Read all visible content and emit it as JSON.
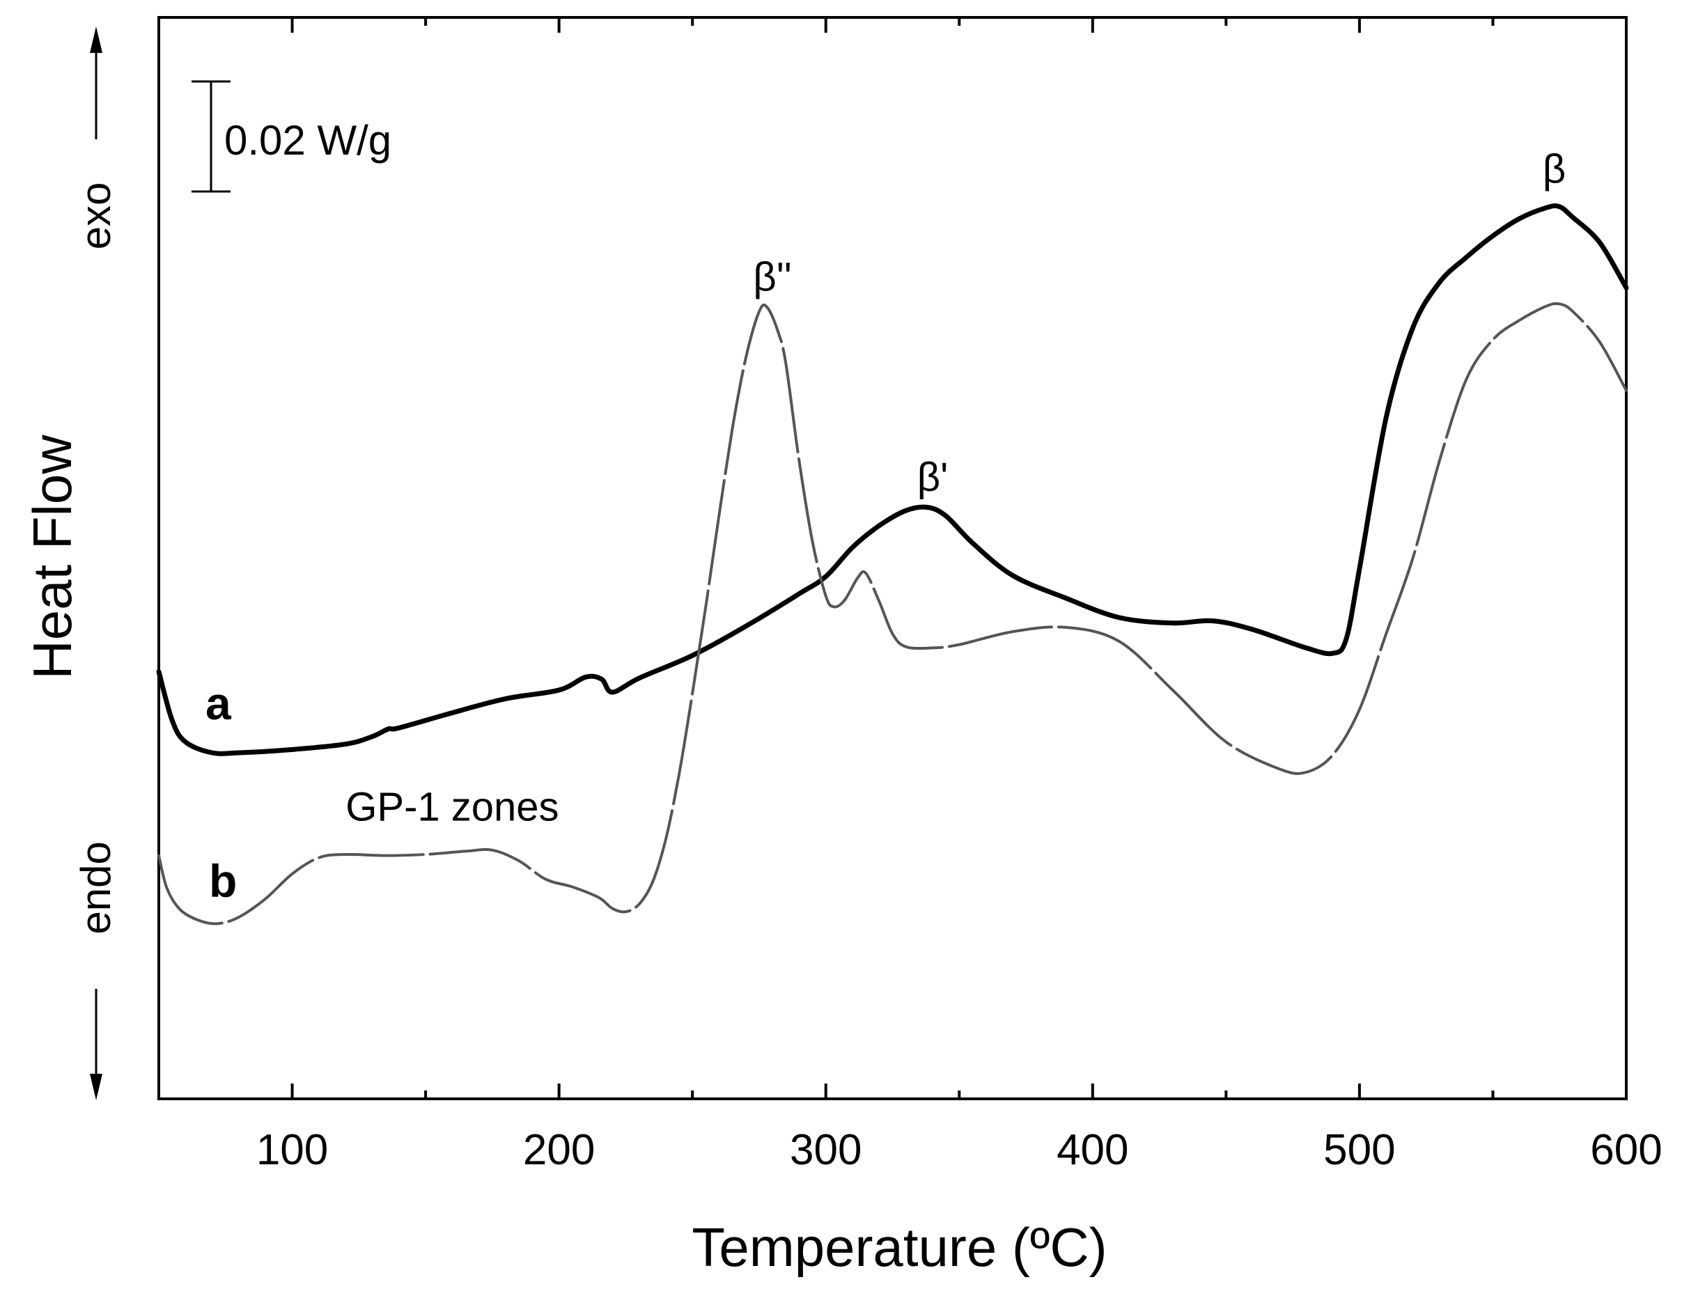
{
  "chart_data": {
    "type": "line",
    "title": "",
    "xlabel": "Temperature (ºC)",
    "ylabel": "Heat Flow",
    "xlim": [
      50,
      600
    ],
    "ylim": [
      0,
      100
    ],
    "xticks": [
      100,
      200,
      300,
      400,
      500,
      600
    ],
    "xtick_labels": [
      "100",
      "200",
      "300",
      "400",
      "500",
      "600"
    ],
    "y_axis_ticks_shown": false,
    "grid": false,
    "side_labels": {
      "exo": "exo",
      "endo": "endo"
    },
    "scale_bar": {
      "label": "0.02 W/g",
      "value": 0.02,
      "unit": "W/g"
    },
    "series": [
      {
        "name": "a",
        "label": "a",
        "style": "solid",
        "color": "#000000",
        "x": [
          50,
          55,
          60,
          70,
          80,
          100,
          120,
          130,
          136,
          140,
          160,
          180,
          200,
          210,
          216,
          220,
          230,
          250,
          270,
          290,
          300,
          310,
          320,
          330,
          338,
          345,
          355,
          370,
          390,
          410,
          430,
          445,
          460,
          480,
          490,
          495,
          500,
          510,
          520,
          530,
          540,
          550,
          560,
          570,
          575,
          580,
          590,
          600
        ],
        "y": [
          39.5,
          35,
          33,
          32,
          32,
          32.3,
          32.8,
          33.5,
          34.2,
          34.3,
          35.7,
          37,
          37.8,
          39,
          38.8,
          37.6,
          38.9,
          41,
          43.7,
          46.7,
          48.3,
          51,
          53,
          54.4,
          54.7,
          53.9,
          51.4,
          48.4,
          46.3,
          44.5,
          44,
          44.2,
          43.4,
          41.7,
          41.2,
          42.5,
          49,
          63,
          71.3,
          75.5,
          77.8,
          79.8,
          81.4,
          82.4,
          82.5,
          81.5,
          79.2,
          75
        ]
      },
      {
        "name": "b",
        "label": "b",
        "style": "dashed",
        "color": "#555555",
        "x": [
          50,
          53,
          58,
          65,
          72,
          80,
          90,
          100,
          110,
          120,
          135,
          150,
          165,
          175,
          185,
          195,
          205,
          215,
          220,
          225,
          230,
          235,
          240,
          245,
          250,
          255,
          260,
          265,
          270,
          275,
          278,
          282,
          285,
          290,
          295,
          300,
          303,
          307,
          312,
          315,
          320,
          325,
          330,
          340,
          350,
          370,
          390,
          410,
          430,
          450,
          470,
          480,
          490,
          500,
          510,
          520,
          530,
          540,
          550,
          560,
          570,
          575,
          580,
          590,
          600
        ],
        "y": [
          22.5,
          19.5,
          17.5,
          16.5,
          16.2,
          16.8,
          18.5,
          20.8,
          22.3,
          22.6,
          22.5,
          22.6,
          22.9,
          23,
          22,
          20.3,
          19.6,
          18.6,
          17.6,
          17.3,
          18,
          20,
          24,
          30,
          37.5,
          45.5,
          54,
          62,
          68.5,
          72.8,
          73.2,
          71,
          68,
          59,
          51.5,
          46.5,
          45.5,
          46.1,
          48.2,
          48.6,
          46,
          43,
          41.8,
          41.7,
          42,
          43.2,
          43.6,
          42.3,
          37.8,
          33,
          30.5,
          30.2,
          31.8,
          36,
          43,
          50,
          59,
          66.5,
          70.2,
          72,
          73.3,
          73.5,
          72.8,
          70,
          65.5
        ]
      }
    ],
    "annotations": [
      {
        "text": "β''",
        "x": 280,
        "y": 76
      },
      {
        "text": "β'",
        "x": 340,
        "y": 57.5
      },
      {
        "text": "β",
        "x": 573,
        "y": 86
      },
      {
        "text": "GP-1 zones",
        "x": 160,
        "y": 27
      }
    ]
  }
}
